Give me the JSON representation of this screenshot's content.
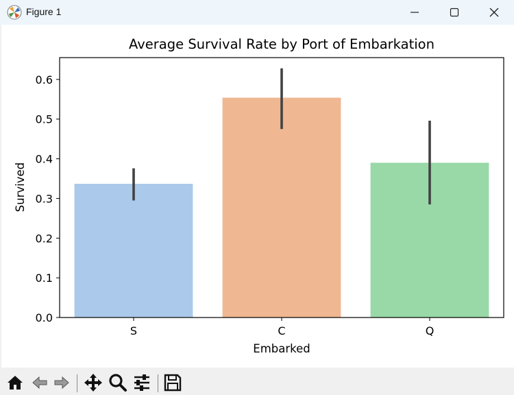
{
  "window": {
    "title": "Figure 1",
    "minimize_label": "Minimize",
    "maximize_label": "Maximize",
    "close_label": "Close"
  },
  "toolbar": {
    "buttons": [
      "home-icon",
      "back-icon",
      "forward-icon",
      "pan-icon",
      "zoom-icon",
      "configure-subplots-icon",
      "save-icon"
    ]
  },
  "colors": {
    "bar_colors": [
      "#abc9ea",
      "#efb792",
      "#98d9a7"
    ],
    "error_bar": "#424242"
  },
  "chart_data": {
    "type": "bar",
    "title": "Average Survival Rate by Port of Embarkation",
    "xlabel": "Embarked",
    "ylabel": "Survived",
    "categories": [
      "S",
      "C",
      "Q"
    ],
    "values": [
      0.337,
      0.554,
      0.39
    ],
    "error_low": [
      0.295,
      0.475,
      0.285
    ],
    "error_high": [
      0.376,
      0.628,
      0.496
    ],
    "ylim": [
      0,
      0.655
    ],
    "yticks": [
      0.0,
      0.1,
      0.2,
      0.3,
      0.4,
      0.5,
      0.6
    ],
    "ytick_labels": [
      "0.0",
      "0.1",
      "0.2",
      "0.3",
      "0.4",
      "0.5",
      "0.6"
    ],
    "grid": false
  }
}
